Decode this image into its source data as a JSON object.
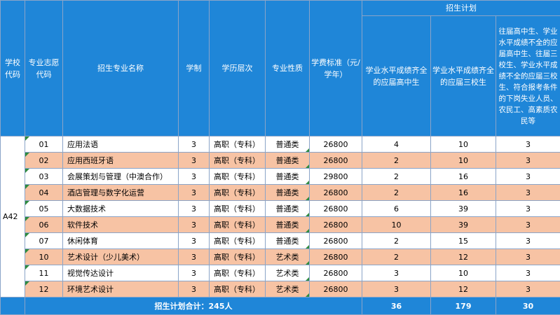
{
  "header": {
    "school_code": "学校代码",
    "major_code": "专业志愿代码",
    "major_name": "招生专业名称",
    "duration": "学制",
    "level": "学历层次",
    "nature": "专业性质",
    "tuition": "学费标准（元/学年）",
    "plan": "招生计划",
    "plan_cols": [
      "学业水平成绩齐全的应届高中生",
      "学业水平成绩齐全的应届三校生",
      "往届高中生、学业水平成绩不全的应届高中生、往届三校生、学业水平成绩不全的应届三校生、符合报考条件的下岗失业人员、农民工、高素质农民等"
    ]
  },
  "school_code": "A42",
  "rows": [
    {
      "code": "01",
      "name": "应用法语",
      "duration": "3",
      "level": "高职（专科）",
      "nature": "普通类",
      "tuition": "26800",
      "p1": "4",
      "p2": "10",
      "p3": "3"
    },
    {
      "code": "02",
      "name": "应用西班牙语",
      "duration": "3",
      "level": "高职（专科）",
      "nature": "普通类",
      "tuition": "26800",
      "p1": "2",
      "p2": "10",
      "p3": "3"
    },
    {
      "code": "03",
      "name": "会展策划与管理（中澳合作）",
      "duration": "3",
      "level": "高职（专科）",
      "nature": "普通类",
      "tuition": "29800",
      "p1": "2",
      "p2": "16",
      "p3": "3"
    },
    {
      "code": "04",
      "name": "酒店管理与数字化运营",
      "duration": "3",
      "level": "高职（专科）",
      "nature": "普通类",
      "tuition": "26800",
      "p1": "2",
      "p2": "16",
      "p3": "3"
    },
    {
      "code": "05",
      "name": "大数据技术",
      "duration": "3",
      "level": "高职（专科）",
      "nature": "普通类",
      "tuition": "26800",
      "p1": "6",
      "p2": "39",
      "p3": "3"
    },
    {
      "code": "06",
      "name": "软件技术",
      "duration": "3",
      "level": "高职（专科）",
      "nature": "普通类",
      "tuition": "26800",
      "p1": "10",
      "p2": "39",
      "p3": "3"
    },
    {
      "code": "07",
      "name": "休闲体育",
      "duration": "3",
      "level": "高职（专科）",
      "nature": "普通类",
      "tuition": "26800",
      "p1": "2",
      "p2": "15",
      "p3": "3"
    },
    {
      "code": "10",
      "name": "艺术设计（少儿美术）",
      "duration": "3",
      "level": "高职（专科）",
      "nature": "艺术类",
      "tuition": "26800",
      "p1": "2",
      "p2": "12",
      "p3": "3"
    },
    {
      "code": "11",
      "name": "视觉传达设计",
      "duration": "3",
      "level": "高职（专科）",
      "nature": "艺术类",
      "tuition": "26800",
      "p1": "3",
      "p2": "10",
      "p3": "3"
    },
    {
      "code": "12",
      "name": "环境艺术设计",
      "duration": "3",
      "level": "高职（专科）",
      "nature": "艺术类",
      "tuition": "26800",
      "p1": "3",
      "p2": "12",
      "p3": "3"
    }
  ],
  "total": {
    "label": "招生计划合计：245人",
    "p1": "36",
    "p2": "179",
    "p3": "30"
  },
  "colors": {
    "header_bg": "#1f86d8",
    "alt_row_bg": "#f7c3a4",
    "marker": "#2e8b3e"
  }
}
